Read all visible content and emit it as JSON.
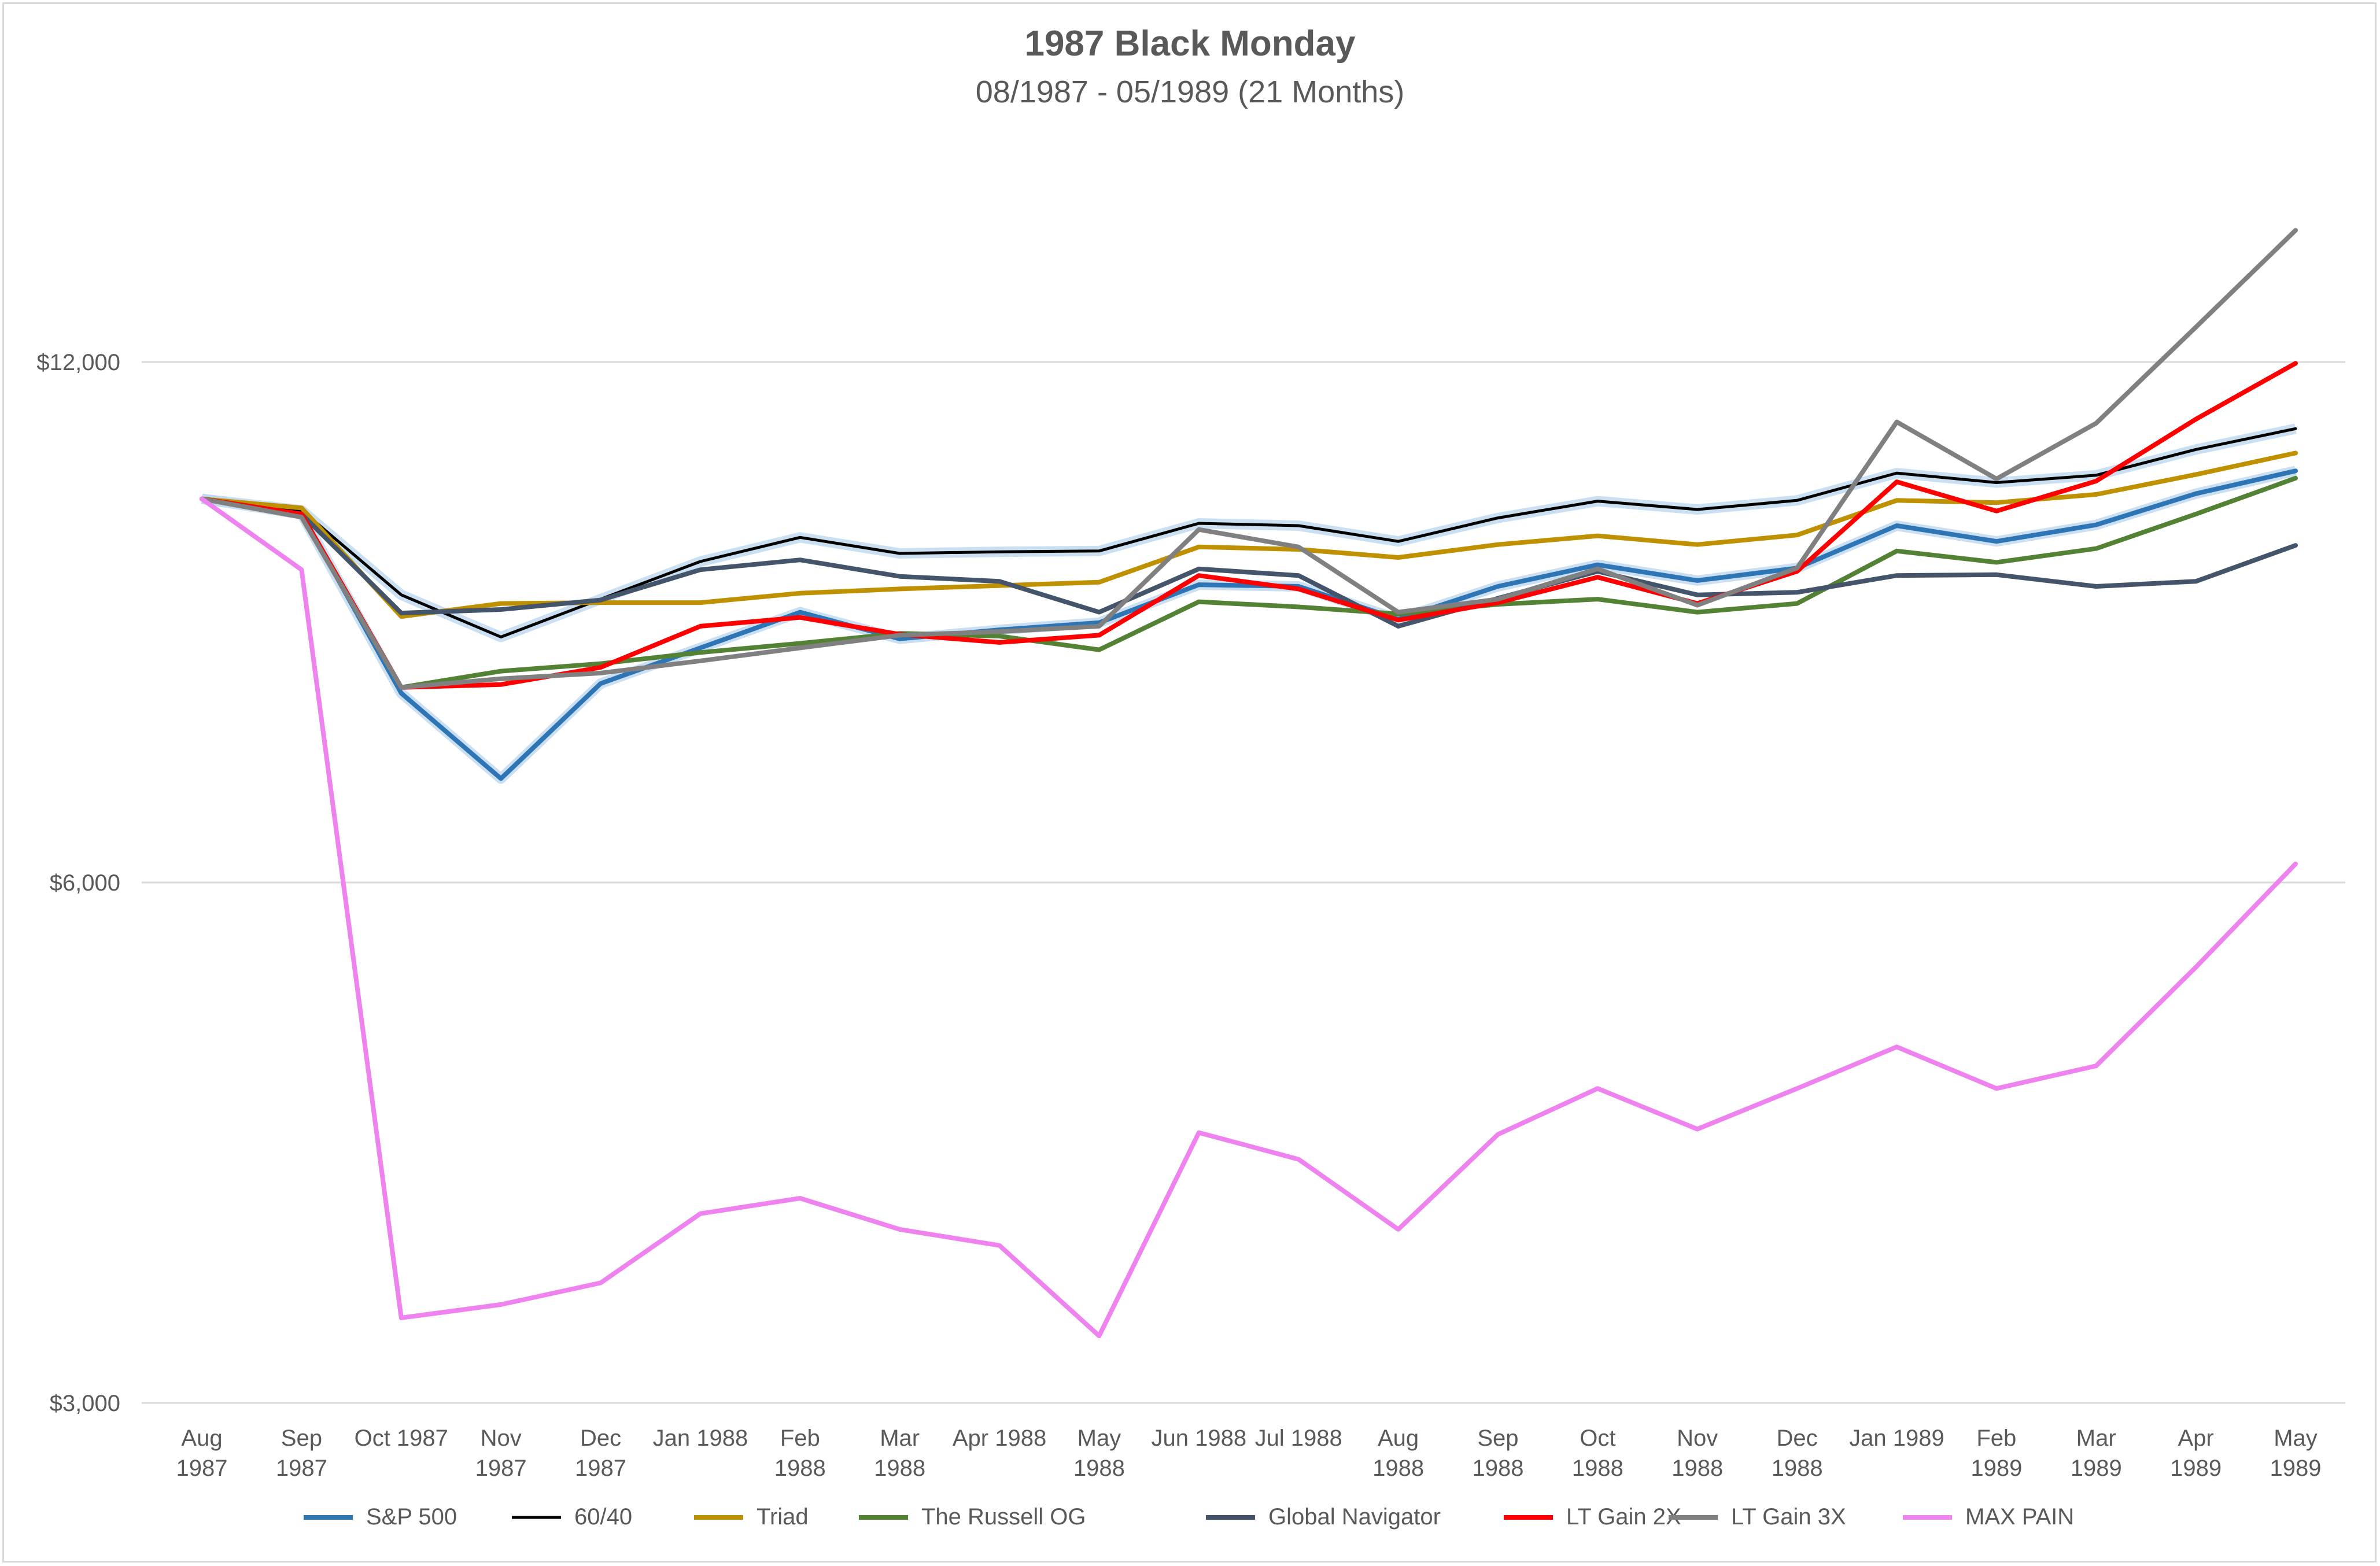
{
  "chart_data": {
    "type": "line",
    "title": "1987 Black Monday",
    "subtitle": "08/1987 - 05/1989 (21 Months)",
    "xlabel": "",
    "ylabel": "",
    "y_scale": "log",
    "ylim": [
      3000,
      16000
    ],
    "y_ticks": [
      "$12,000",
      "$6,000",
      "$3,000"
    ],
    "y_tick_values": [
      12000,
      6000,
      3000
    ],
    "grid": true,
    "legend": "bottom",
    "categories": [
      "Aug 1987",
      "Sep 1987",
      "Oct 1987",
      "Nov 1987",
      "Dec 1987",
      "Jan 1988",
      "Feb 1988",
      "Mar 1988",
      "Apr 1988",
      "May 1988",
      "Jun 1988",
      "Jul 1988",
      "Aug 1988",
      "Sep 1988",
      "Oct 1988",
      "Nov 1988",
      "Dec 1988",
      "Jan 1989",
      "Feb 1989",
      "Mar 1989",
      "Apr 1989",
      "May 1989"
    ],
    "series": [
      {
        "name": "S&P 500",
        "color": "#2e75b6",
        "glow": true,
        "values": [
          10000,
          9800,
          7720,
          6890,
          7820,
          8200,
          8600,
          8300,
          8400,
          8480,
          8920,
          8900,
          8520,
          8900,
          9160,
          8970,
          9120,
          9650,
          9450,
          9660,
          10070,
          10380
        ]
      },
      {
        "name": "60/40",
        "color": "#000000",
        "glow": true,
        "values": [
          10000,
          9850,
          8800,
          8320,
          8750,
          9200,
          9500,
          9300,
          9320,
          9330,
          9680,
          9650,
          9450,
          9750,
          9970,
          9860,
          9980,
          10350,
          10220,
          10320,
          10680,
          10980
        ]
      },
      {
        "name": "Triad",
        "color": "#bf9000",
        "glow": false,
        "values": [
          10000,
          9880,
          8550,
          8700,
          8710,
          8710,
          8820,
          8870,
          8910,
          8950,
          9380,
          9350,
          9250,
          9410,
          9520,
          9410,
          9530,
          9980,
          9950,
          10060,
          10330,
          10630
        ]
      },
      {
        "name": "The Russell OG",
        "color": "#548235",
        "glow": false,
        "values": [
          10000,
          9800,
          7780,
          7950,
          8030,
          8150,
          8250,
          8360,
          8330,
          8180,
          8720,
          8660,
          8580,
          8690,
          8750,
          8600,
          8700,
          9330,
          9190,
          9360,
          9800,
          10280
        ]
      },
      {
        "name": "Global Navigator",
        "color": "#44546a",
        "glow": false,
        "values": [
          10000,
          9800,
          8590,
          8630,
          8740,
          9100,
          9220,
          9020,
          8960,
          8600,
          9110,
          9030,
          8440,
          8760,
          9080,
          8800,
          8830,
          9030,
          9040,
          8900,
          8960,
          9400
        ]
      },
      {
        "name": "LT Gain 2X",
        "color": "#ff0000",
        "glow": false,
        "values": [
          10000,
          9800,
          7780,
          7810,
          7990,
          8440,
          8540,
          8350,
          8260,
          8340,
          9030,
          8870,
          8510,
          8710,
          9010,
          8700,
          9080,
          10230,
          9840,
          10240,
          11120,
          11980
        ]
      },
      {
        "name": "LT Gain 3X",
        "color": "#808080",
        "glow": false,
        "values": [
          10000,
          9760,
          7780,
          7870,
          7930,
          8060,
          8200,
          8340,
          8380,
          8440,
          9600,
          9380,
          8600,
          8750,
          9110,
          8680,
          9120,
          11080,
          10270,
          11060,
          12570,
          14300
        ]
      },
      {
        "name": "MAX PAIN",
        "color": "#ee82ee",
        "glow": false,
        "values": [
          10000,
          9100,
          3360,
          3420,
          3520,
          3860,
          3940,
          3780,
          3700,
          3280,
          4300,
          4150,
          3780,
          4290,
          4560,
          4320,
          4560,
          4820,
          4560,
          4700,
          5360,
          6150
        ]
      }
    ]
  }
}
